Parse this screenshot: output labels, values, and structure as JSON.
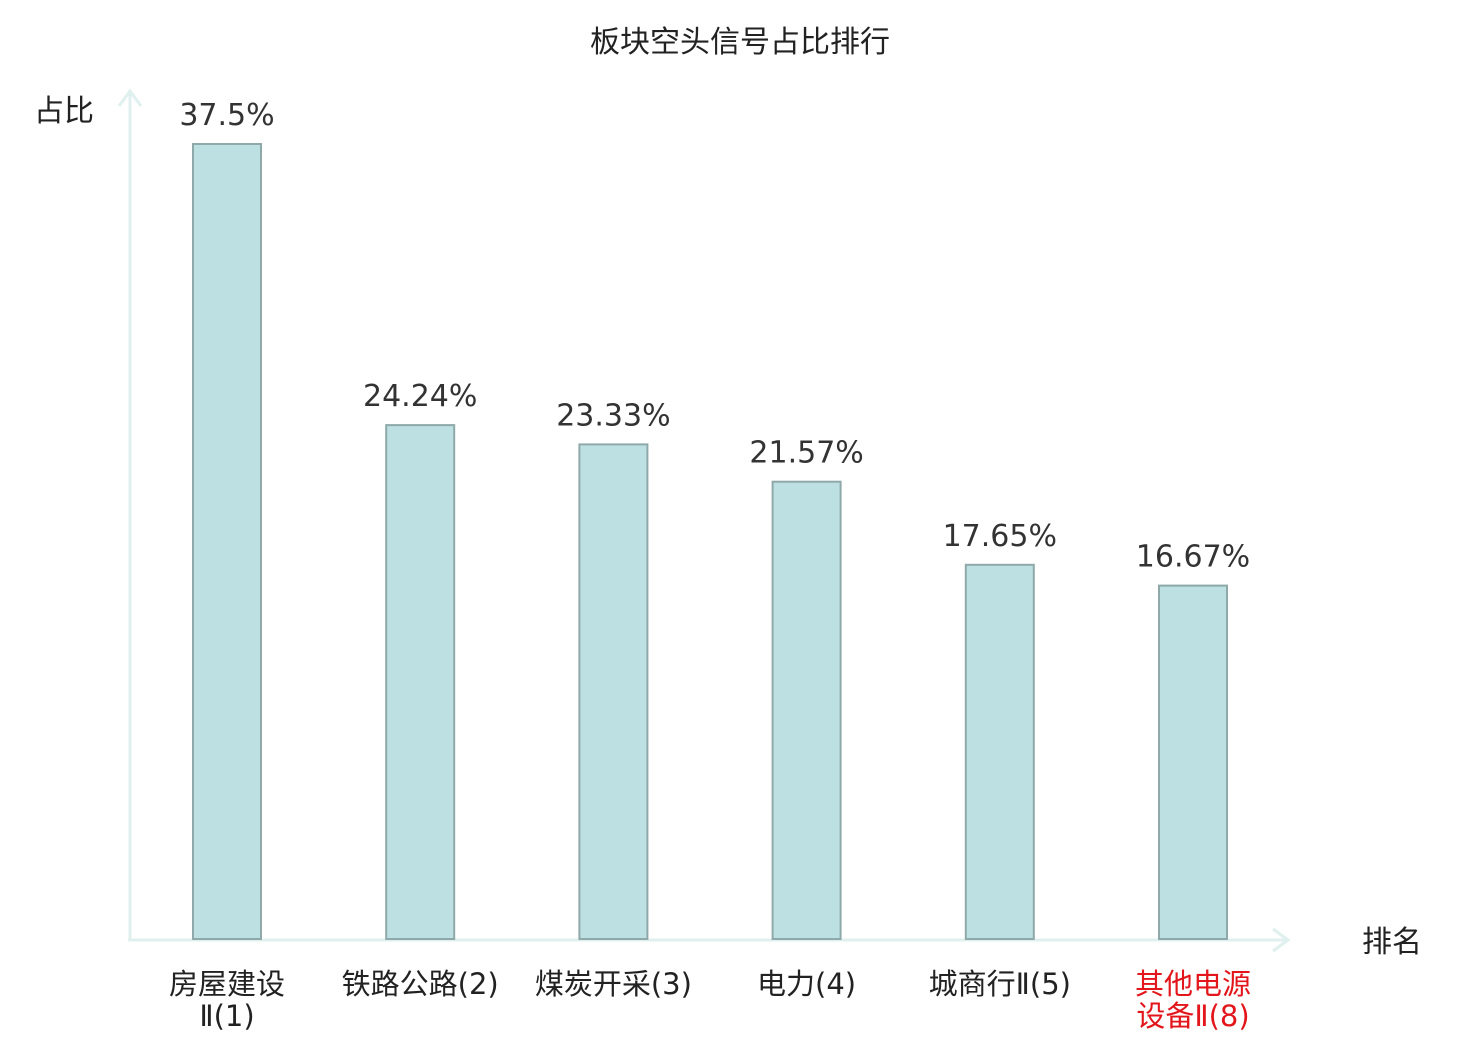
{
  "chart_data": {
    "type": "bar",
    "title": "板块空头信号占比排行",
    "xlabel": "排名",
    "ylabel": "占比",
    "ylim": [
      0,
      37.5
    ],
    "grid": false,
    "legend": "none",
    "categories": [
      [
        "房屋建设",
        "Ⅱ(1)"
      ],
      [
        "铁路公路(2)"
      ],
      [
        "煤炭开采(3)"
      ],
      [
        "电力(4)"
      ],
      [
        "城商行Ⅱ(5)"
      ],
      [
        "其他电源",
        "设备Ⅱ(8)"
      ]
    ],
    "values": [
      37.5,
      24.24,
      23.33,
      21.57,
      17.65,
      16.67
    ],
    "value_labels": [
      "37.5%",
      "24.24%",
      "23.33%",
      "21.57%",
      "17.65%",
      "16.67%"
    ],
    "highlighted_index": 5,
    "colors": {
      "bar_fill": "#bde0e2",
      "bar_stroke": "#8fa9aa",
      "axis": "#dff0ee",
      "highlight_label": "#e3161b",
      "text": "#222222"
    }
  }
}
